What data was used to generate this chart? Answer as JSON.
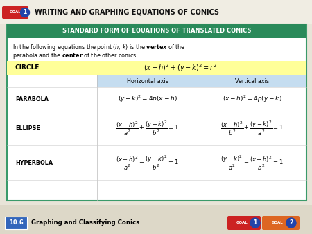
{
  "title_text": "WRITING AND GRAPHING EQUATIONS OF CONICS",
  "header_text": "STANDARD FORM OF EQUATIONS OF TRANSLATED CONICS",
  "footer_section": "10.6",
  "footer_text": "Graphing and Classifying Conics",
  "bg_color": "#e8e4d8",
  "top_bg": "#f0ede3",
  "white_bg": "#ffffff",
  "header_bg": "#2a8a5a",
  "header_text_color": "#ffffff",
  "circle_bg": "#ffff99",
  "axis_header_bg": "#c5ddf0",
  "table_border": "#3a9a6a",
  "goal_red": "#cc2222",
  "goal_blue": "#2244aa",
  "goal2_orange": "#dd6622",
  "footer_blue": "#3366bb",
  "footer_bg": "#ddd8c8",
  "divider_color": "#aaaaaa",
  "label_color": "#333333"
}
